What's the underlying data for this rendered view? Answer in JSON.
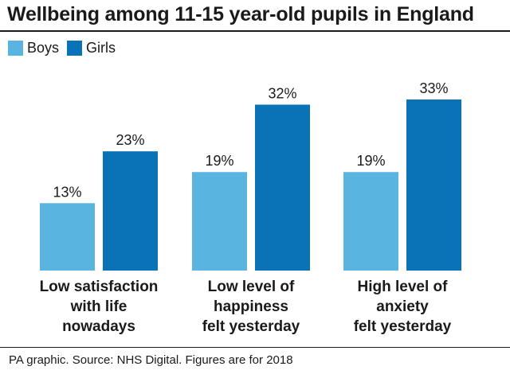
{
  "chart_data": {
    "type": "bar",
    "title": "Wellbeing among 11-15 year-old pupils in England",
    "categories": [
      [
        "Low satisfaction",
        "with life",
        "nowadays"
      ],
      [
        "Low level of",
        "happiness",
        "felt yesterday"
      ],
      [
        "High level of",
        "anxiety",
        "felt yesterday"
      ]
    ],
    "series": [
      {
        "name": "Boys",
        "color": "#5ab4e0",
        "values": [
          13,
          19,
          19
        ],
        "labels": [
          "13%",
          "19%",
          "19%"
        ]
      },
      {
        "name": "Girls",
        "color": "#0a73b8",
        "values": [
          23,
          32,
          33
        ],
        "labels": [
          "23%",
          "32%",
          "33%"
        ]
      }
    ],
    "xlabel": "",
    "ylabel": "",
    "ylim": [
      0,
      33
    ],
    "grid": false,
    "legend": "top-left"
  },
  "footer": {
    "source": "PA graphic. Source: NHS Digital. Figures are for 2018"
  }
}
